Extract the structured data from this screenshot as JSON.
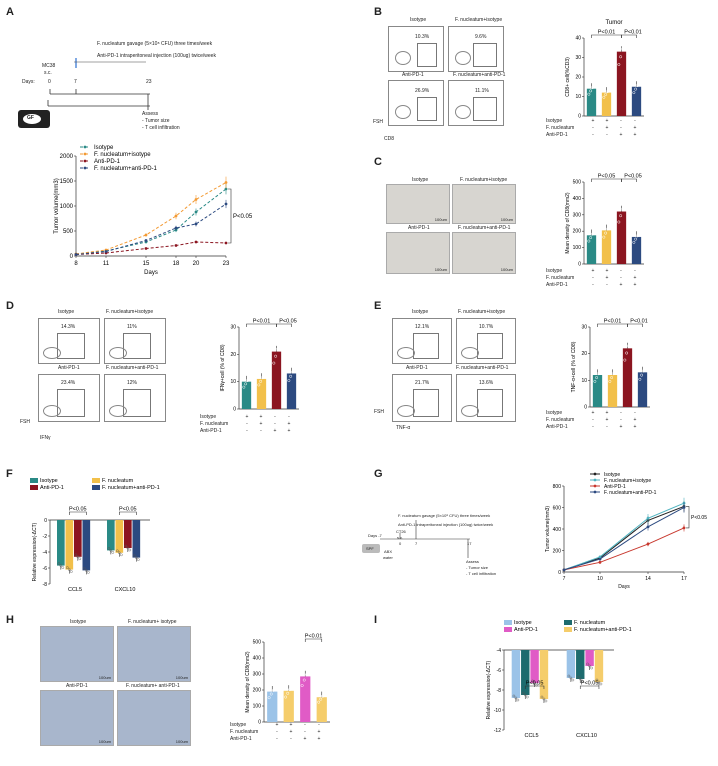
{
  "panels": {
    "A": "A",
    "B": "B",
    "C": "C",
    "D": "D",
    "E": "E",
    "F": "F",
    "G": "G",
    "H": "H",
    "I": "I"
  },
  "schemeA": {
    "top1": "F. nucleatum gavage (5×10⁸ CFU) three times/week",
    "top2": "Anti-PD-1 intraperitoneal  injection (100ug) twice/week",
    "mc38": "MC38",
    "sc": "s.c.",
    "days_label": "Days:",
    "d0": "0",
    "d7": "7",
    "d23": "23",
    "gf": "GF",
    "assess": "Assess",
    "assess1": "- Tumor size",
    "assess2": "- T cell infiltration"
  },
  "schemeG": {
    "top1": "F. nucleatum gavage (5×10⁸ CFU) three times/week",
    "top2": "Anti-PD-1 intraperitoneal injection (100ug) twice/week",
    "days": "Days -7",
    "ct26": "CT26",
    "sc": "s.c.",
    "d0": "0",
    "d7": "7",
    "d17": "17",
    "spf": "SPF",
    "abx": "ABX",
    "water": "water",
    "assess": "Assess",
    "assess1": "- Tumor size",
    "assess2": "- T cell infiltration"
  },
  "flow": {
    "B": {
      "title": "",
      "g1": "Isotype",
      "g2": "F. nucleatum+isotype",
      "g3": "Anti-PD-1",
      "g4": "F. nucleatum+anti-PD-1",
      "v1": "10.3%",
      "v2": "9.6%",
      "v3": "26.9%",
      "v4": "11.1%",
      "ylab": "FSH",
      "xlab": "CD8"
    },
    "D": {
      "g1": "Isotype",
      "g2": "F. nucleatum+isotype",
      "g3": "Anti-PD-1",
      "g4": "F. nucleatum+anti-PD-1",
      "v1": "14.3%",
      "v2": "11%",
      "v3": "23.4%",
      "v4": "12%",
      "ylab": "FSH",
      "xlab": "IFNγ"
    },
    "E": {
      "g1": "Isotype",
      "g2": "F. nucleatum+isotype",
      "g3": "Anti-PD-1",
      "g4": "F. nucleatum+anti-PD-1",
      "v1": "12.1%",
      "v2": "10.7%",
      "v3": "21.7%",
      "v4": "13.6%",
      "ylab": "FSH",
      "xlab": "TNF-α"
    }
  },
  "ihc": {
    "C": {
      "g1": "Isotype",
      "g2": "F. nucleatum+isotype",
      "g3": "Anti-PD-1",
      "g4": "F. nucleatum+anti-PD-1",
      "scale": "100um"
    },
    "H": {
      "g1": "Isotype",
      "g2": "F. nucleatum+ isotype",
      "g3": "Anti-PD-1",
      "g4": "F. nucleatum+ anti-PD-1",
      "scale": "100um"
    }
  },
  "tables": {
    "rows": [
      "Isotype",
      "F. nucleatum",
      "Anti-PD-1"
    ],
    "B": {
      "r1": [
        "+",
        "+",
        "-",
        "-"
      ],
      "r2": [
        "-",
        "+",
        "-",
        "+"
      ],
      "r3": [
        "-",
        "-",
        "+",
        "+"
      ]
    },
    "C": {
      "r1": [
        "+",
        "+",
        "-",
        "-"
      ],
      "r2": [
        "-",
        "+",
        "-",
        "+"
      ],
      "r3": [
        "-",
        "-",
        "+",
        "+"
      ]
    },
    "D": {
      "r1": [
        "+",
        "+",
        "-",
        "-"
      ],
      "r2": [
        "-",
        "+",
        "-",
        "+"
      ],
      "r3": [
        "-",
        "-",
        "+",
        "+"
      ]
    },
    "E": {
      "r1": [
        "+",
        "+",
        "-",
        "-"
      ],
      "r2": [
        "-",
        "+",
        "-",
        "+"
      ],
      "r3": [
        "-",
        "-",
        "+",
        "+"
      ]
    },
    "H": {
      "r1": [
        "+",
        "+",
        "-",
        "-"
      ],
      "r2": [
        "-",
        "+",
        "-",
        "+"
      ],
      "r3": [
        "-",
        "-",
        "+",
        "+"
      ]
    }
  },
  "colors": {
    "teal": "#2a8a86",
    "yellow": "#f2c04a",
    "darkred": "#8b1520",
    "blue": "#2c4a80",
    "lightblue": "#9bc3e8",
    "pink": "#e05bc6",
    "lightyellow": "#f5cd6b",
    "darkteal": "#1d6b6e"
  },
  "chart_data": [
    {
      "panel": "A",
      "type": "line",
      "title": "",
      "xlabel": "Days",
      "ylabel": "Tumor volume(mm3)",
      "x": [
        8,
        11,
        15,
        18,
        20,
        23
      ],
      "ylim": [
        0,
        2000
      ],
      "yticks": [
        0,
        500,
        1000,
        1500,
        2000
      ],
      "series": [
        {
          "name": "Isotype",
          "values": [
            40,
            100,
            280,
            520,
            880,
            1340
          ]
        },
        {
          "name": "F. nucleatum+isotype",
          "values": [
            40,
            120,
            420,
            800,
            1130,
            1470
          ]
        },
        {
          "name": "Anti-PD-1",
          "values": [
            30,
            60,
            150,
            210,
            280,
            260
          ]
        },
        {
          "name": "F. nucleatum+anti-PD-1",
          "values": [
            30,
            90,
            310,
            560,
            640,
            1040
          ]
        }
      ],
      "annotation": "P<0.05"
    },
    {
      "panel": "B",
      "type": "bar",
      "ylabel": "CD8+ cell(%CD3)",
      "ylim": [
        0,
        40
      ],
      "yticks": [
        0,
        10,
        20,
        30,
        40
      ],
      "values": [
        14,
        12,
        33,
        15
      ],
      "annotations": [
        "P<0.01",
        "P<0.01"
      ],
      "title": "Tumor"
    },
    {
      "panel": "C",
      "type": "bar",
      "ylabel": "Mean density of CD8(mm2)",
      "ylim": [
        0,
        500
      ],
      "yticks": [
        0,
        100,
        200,
        300,
        400,
        500
      ],
      "values": [
        175,
        205,
        320,
        165
      ],
      "annotations": [
        "P<0.05",
        "P<0.05"
      ]
    },
    {
      "panel": "D",
      "type": "bar",
      "ylabel": "IFNγ+cell (% of CD8)",
      "ylim": [
        0,
        30
      ],
      "yticks": [
        0,
        10,
        20,
        30
      ],
      "values": [
        10,
        11,
        21,
        13
      ],
      "annotations": [
        "P<0.01",
        "P<0.05"
      ]
    },
    {
      "panel": "E",
      "type": "bar",
      "ylabel": "TNF-α+cell (% of CD8)",
      "ylim": [
        0,
        30
      ],
      "yticks": [
        0,
        10,
        20,
        30
      ],
      "values": [
        12,
        12,
        22,
        13
      ],
      "annotations": [
        "P<0.01",
        "P<0.01"
      ]
    },
    {
      "panel": "F",
      "type": "bar",
      "ylabel": "Relative expression(-ΔCT)",
      "ylim": [
        -8,
        0
      ],
      "yticks": [
        -8,
        -6,
        -4,
        -2,
        0
      ],
      "categories": [
        "CCL5",
        "CXCL10"
      ],
      "series": [
        {
          "name": "Isotype",
          "values": [
            -5.7,
            -3.8
          ]
        },
        {
          "name": "F. nucleatum",
          "values": [
            -6.2,
            -4.1
          ]
        },
        {
          "name": "Anti-PD-1",
          "values": [
            -4.6,
            -3.5
          ]
        },
        {
          "name": "F. nucleatum+anti-PD-1",
          "values": [
            -6.3,
            -4.7
          ]
        }
      ],
      "annotations": [
        "P<0.05",
        "P<0.05"
      ]
    },
    {
      "panel": "G",
      "type": "line",
      "xlabel": "Days",
      "ylabel": "Tumor volume(mm3)",
      "x": [
        7,
        10,
        14,
        17
      ],
      "ylim": [
        0,
        800
      ],
      "yticks": [
        0,
        200,
        400,
        600,
        800
      ],
      "series": [
        {
          "name": "Isotype",
          "values": [
            20,
            130,
            480,
            610
          ]
        },
        {
          "name": "F. nucleatum+isotype",
          "values": [
            20,
            140,
            500,
            640
          ]
        },
        {
          "name": "Anti-PD-1",
          "values": [
            20,
            90,
            260,
            410
          ]
        },
        {
          "name": "F. nucleatum+anti-PD-1",
          "values": [
            20,
            120,
            420,
            600
          ]
        }
      ],
      "annotation": "P<0.05"
    },
    {
      "panel": "H",
      "type": "bar",
      "ylabel": "Mean density of CD8(mm2)",
      "ylim": [
        0,
        500
      ],
      "yticks": [
        0,
        100,
        200,
        300,
        400,
        500
      ],
      "values": [
        190,
        195,
        285,
        155
      ],
      "annotations": [
        "P<0.01"
      ]
    },
    {
      "panel": "I",
      "type": "bar",
      "ylabel": "Relative expression(-ΔCT)",
      "ylim": [
        -12,
        -4
      ],
      "yticks": [
        -12,
        -10,
        -8,
        -6,
        -4
      ],
      "categories": [
        "CCL5",
        "CXCL10"
      ],
      "series": [
        {
          "name": "Isotype",
          "values": [
            -8.8,
            -6.8
          ]
        },
        {
          "name": "F. nucleatum",
          "values": [
            -8.5,
            -6.9
          ]
        },
        {
          "name": "Anti-PD-1",
          "values": [
            -7.3,
            -5.6
          ]
        },
        {
          "name": "F. nucleatum+anti-PD-1",
          "values": [
            -8.9,
            -7.2
          ]
        }
      ],
      "annotations": [
        "P<0.05",
        "P<0.05"
      ]
    }
  ]
}
